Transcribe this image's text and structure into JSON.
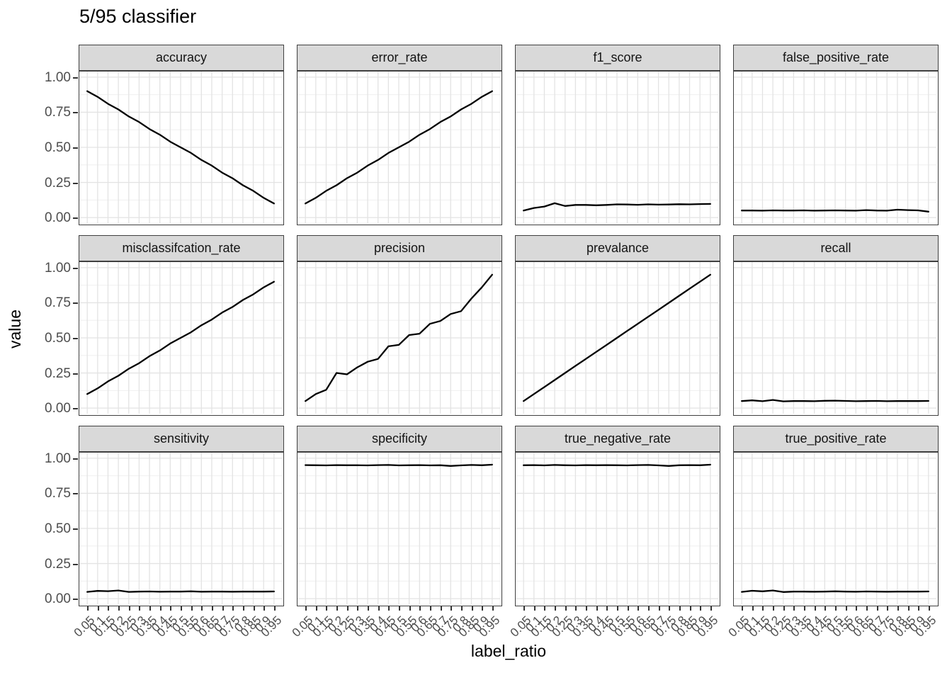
{
  "title": "5/95 classifier",
  "axis": {
    "x_title": "label_ratio",
    "y_title": "value",
    "y_tick_labels": [
      "1.00",
      "0.75",
      "0.50",
      "0.25",
      "0.00"
    ],
    "y_tick_values": [
      1.0,
      0.75,
      0.5,
      0.25,
      0.0
    ],
    "x_tick_labels": [
      "0.05",
      "0.1",
      "0.15",
      "0.2",
      "0.25",
      "0.3",
      "0.35",
      "0.4",
      "0.45",
      "0.5",
      "0.55",
      "0.6",
      "0.65",
      "0.7",
      "0.75",
      "0.8",
      "0.85",
      "0.9",
      "0.95"
    ]
  },
  "colors": {
    "strip_bg": "#d9d9d9",
    "panel_border": "#404040",
    "grid_major": "#e3e3e3",
    "grid_minor": "#eeeeee",
    "line": "#000000",
    "tick_text": "#4d4d4d",
    "tick_mark": "#333333"
  },
  "chart_data": {
    "type": "line",
    "title": "5/95 classifier",
    "xlabel": "label_ratio",
    "ylabel": "value",
    "grid": true,
    "legend": "none",
    "facet_layout": {
      "rows": 3,
      "cols": 4
    },
    "x": [
      0.05,
      0.1,
      0.15,
      0.2,
      0.25,
      0.3,
      0.35,
      0.4,
      0.45,
      0.5,
      0.55,
      0.6,
      0.65,
      0.7,
      0.75,
      0.8,
      0.85,
      0.9,
      0.95
    ],
    "ylim": [
      0,
      1
    ],
    "y_major_ticks": [
      0,
      0.25,
      0.5,
      0.75,
      1.0
    ],
    "y_minor_ticks": [
      0.125,
      0.375,
      0.625,
      0.875
    ],
    "facets": [
      {
        "name": "accuracy",
        "values": [
          0.9,
          0.86,
          0.81,
          0.77,
          0.72,
          0.68,
          0.63,
          0.59,
          0.54,
          0.5,
          0.46,
          0.41,
          0.37,
          0.32,
          0.28,
          0.23,
          0.19,
          0.14,
          0.1
        ]
      },
      {
        "name": "error_rate",
        "values": [
          0.1,
          0.14,
          0.19,
          0.23,
          0.28,
          0.32,
          0.37,
          0.41,
          0.46,
          0.5,
          0.54,
          0.59,
          0.63,
          0.68,
          0.72,
          0.77,
          0.81,
          0.86,
          0.9
        ]
      },
      {
        "name": "f1_score",
        "values": [
          0.05,
          0.068,
          0.078,
          0.102,
          0.082,
          0.09,
          0.09,
          0.087,
          0.09,
          0.094,
          0.093,
          0.091,
          0.094,
          0.092,
          0.093,
          0.095,
          0.094,
          0.096,
          0.097
        ]
      },
      {
        "name": "false_positive_rate",
        "values": [
          0.05,
          0.05,
          0.049,
          0.051,
          0.05,
          0.05,
          0.051,
          0.049,
          0.05,
          0.051,
          0.05,
          0.049,
          0.053,
          0.05,
          0.049,
          0.056,
          0.053,
          0.051,
          0.042
        ]
      },
      {
        "name": "misclassifcation_rate",
        "values": [
          0.1,
          0.14,
          0.19,
          0.23,
          0.28,
          0.32,
          0.37,
          0.41,
          0.46,
          0.5,
          0.54,
          0.59,
          0.63,
          0.68,
          0.72,
          0.77,
          0.81,
          0.86,
          0.9
        ]
      },
      {
        "name": "precision",
        "values": [
          0.05,
          0.1,
          0.13,
          0.25,
          0.24,
          0.29,
          0.33,
          0.35,
          0.44,
          0.45,
          0.52,
          0.53,
          0.6,
          0.62,
          0.67,
          0.69,
          0.78,
          0.86,
          0.95
        ]
      },
      {
        "name": "prevalance",
        "values": [
          0.05,
          0.1,
          0.15,
          0.2,
          0.25,
          0.3,
          0.35,
          0.4,
          0.45,
          0.5,
          0.55,
          0.6,
          0.65,
          0.7,
          0.75,
          0.8,
          0.85,
          0.9,
          0.95
        ]
      },
      {
        "name": "recall",
        "values": [
          0.05,
          0.055,
          0.049,
          0.058,
          0.048,
          0.05,
          0.05,
          0.049,
          0.052,
          0.053,
          0.051,
          0.049,
          0.05,
          0.051,
          0.049,
          0.05,
          0.05,
          0.05,
          0.051
        ]
      },
      {
        "name": "sensitivity",
        "values": [
          0.048,
          0.055,
          0.053,
          0.058,
          0.048,
          0.05,
          0.051,
          0.049,
          0.05,
          0.05,
          0.052,
          0.049,
          0.05,
          0.05,
          0.049,
          0.05,
          0.05,
          0.05,
          0.051
        ]
      },
      {
        "name": "specificity",
        "values": [
          0.951,
          0.95,
          0.949,
          0.951,
          0.95,
          0.95,
          0.949,
          0.951,
          0.952,
          0.949,
          0.95,
          0.951,
          0.949,
          0.95,
          0.945,
          0.949,
          0.952,
          0.95,
          0.954
        ]
      },
      {
        "name": "true_negative_rate",
        "values": [
          0.95,
          0.951,
          0.949,
          0.952,
          0.95,
          0.949,
          0.951,
          0.95,
          0.951,
          0.95,
          0.949,
          0.951,
          0.952,
          0.949,
          0.945,
          0.95,
          0.951,
          0.95,
          0.954
        ]
      },
      {
        "name": "true_positive_rate",
        "values": [
          0.048,
          0.056,
          0.052,
          0.058,
          0.047,
          0.05,
          0.05,
          0.049,
          0.05,
          0.052,
          0.05,
          0.049,
          0.051,
          0.05,
          0.049,
          0.05,
          0.05,
          0.05,
          0.051
        ]
      }
    ]
  }
}
